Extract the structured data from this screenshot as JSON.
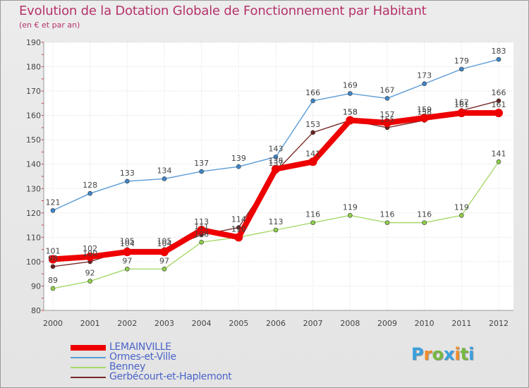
{
  "title": "Evolution de la Dotation Globale de Fonctionnement par Habitant",
  "subtitle": "(en € et par an)",
  "logo": {
    "text": "Proxiti",
    "colors": [
      "#3aa0dc",
      "#f28c28",
      "#78b843",
      "#3aa0dc",
      "#f28c28",
      "#78b843",
      "#3aa0dc"
    ]
  },
  "chart_data": {
    "type": "line",
    "title": "Evolution de la Dotation Globale de Fonctionnement par Habitant",
    "subtitle": "(en € et par an)",
    "ylim": [
      80,
      190
    ],
    "yticks": [
      80,
      90,
      100,
      110,
      120,
      130,
      140,
      150,
      160,
      170,
      180,
      190
    ],
    "x": [
      "2000",
      "2001",
      "2002",
      "2003",
      "2004",
      "2005",
      "2006",
      "2007",
      "2008",
      "2009",
      "2010",
      "2011",
      "2012"
    ],
    "grid": true,
    "legend_position": "bottom-left",
    "series": [
      {
        "name": "Ormes-et-Ville",
        "color": "#5b9bd5",
        "dot": "#3f86c8",
        "values": [
          121,
          128,
          133,
          134,
          137,
          139,
          143,
          166,
          169,
          167,
          173,
          179,
          183
        ]
      },
      {
        "name": "Benney",
        "color": "#a6d96a",
        "dot": "#8fcf4a",
        "values": [
          89,
          92,
          97,
          97,
          108,
          110,
          113,
          116,
          119,
          116,
          116,
          119,
          141
        ]
      },
      {
        "name": "Gerbécourt-et-Haplemont",
        "color": "#7b2b2b",
        "dot": "#6b1f1f",
        "values": [
          98,
          100,
          105,
          105,
          111,
          114,
          137,
          153,
          158,
          155,
          158,
          162,
          166
        ]
      },
      {
        "name": "LEMAINVILLE",
        "color": "#ee0000",
        "dot": "#ee0000",
        "values": [
          101,
          102,
          104,
          104,
          113,
          110,
          138,
          141,
          158,
          157,
          159,
          161,
          161
        ]
      }
    ]
  }
}
